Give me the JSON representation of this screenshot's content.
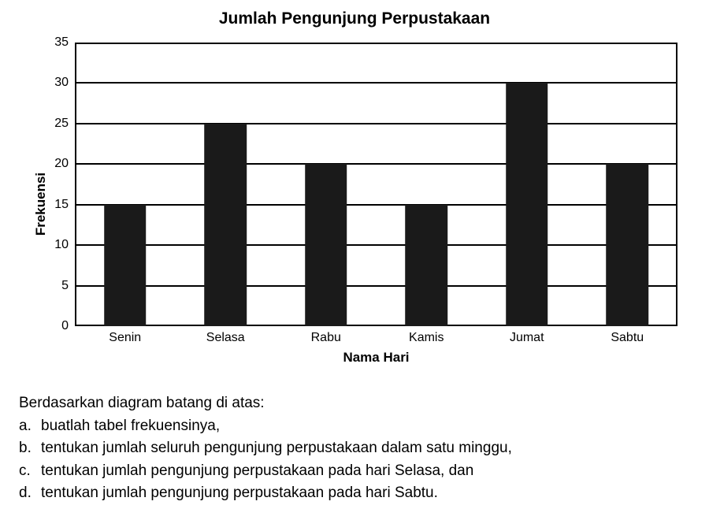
{
  "chart": {
    "type": "bar",
    "title": "Jumlah Pengunjung Perpustakaan",
    "title_fontsize": 21,
    "xlabel": "Nama Hari",
    "ylabel": "Frekuensi",
    "label_fontsize": 17,
    "tick_fontsize": 16,
    "categories": [
      "Senin",
      "Selasa",
      "Rabu",
      "Kamis",
      "Jumat",
      "Sabtu"
    ],
    "values": [
      15,
      25,
      20,
      15,
      30,
      20
    ],
    "bar_color": "#1a1a1a",
    "bar_width_pct": 42,
    "ylim": [
      0,
      35
    ],
    "ytick_step": 5,
    "yticks": [
      0,
      5,
      10,
      15,
      20,
      25,
      30,
      35
    ],
    "background_color": "#ffffff",
    "grid_color": "#000000",
    "border_color": "#000000",
    "grid_on": true
  },
  "questions": {
    "intro": "Berdasarkan diagram batang di atas:",
    "items": [
      {
        "letter": "a.",
        "text": "buatlah tabel frekuensinya,"
      },
      {
        "letter": "b.",
        "text": "tentukan jumlah seluruh pengunjung perpustakaan dalam satu minggu,"
      },
      {
        "letter": "c.",
        "text": "tentukan jumlah pengunjung perpustakaan pada hari Selasa, dan"
      },
      {
        "letter": "d.",
        "text": "tentukan jumlah pengunjung perpustakaan pada hari Sabtu."
      }
    ]
  }
}
